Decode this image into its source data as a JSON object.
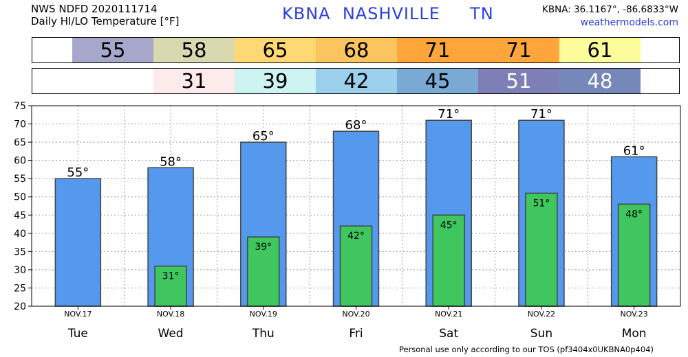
{
  "header": {
    "line1": "NWS NDFD 2020111714",
    "line2": "Daily HI/LO Temperature [°F]",
    "station": "KBNA  NASHVILLE     TN",
    "coords": "KBNA: 36.1167°, -86.6833°W",
    "site": "weathermodels.com"
  },
  "strips": {
    "hi": [
      {
        "value": "55",
        "color": "#a7a7cb",
        "text_color": "#000000"
      },
      {
        "value": "58",
        "color": "#d9d9b0",
        "text_color": "#000000"
      },
      {
        "value": "65",
        "color": "#fed873",
        "text_color": "#000000"
      },
      {
        "value": "68",
        "color": "#fbc45e",
        "text_color": "#000000"
      },
      {
        "value": "71",
        "color": "#fea53b",
        "text_color": "#000000"
      },
      {
        "value": "71",
        "color": "#fea53b",
        "text_color": "#000000"
      },
      {
        "value": "61",
        "color": "#fcfc9d",
        "text_color": "#000000"
      }
    ],
    "lo": [
      {
        "value": "",
        "color": "#ffffff",
        "text_color": "#000000"
      },
      {
        "value": "31",
        "color": "#fdeaea",
        "text_color": "#000000"
      },
      {
        "value": "39",
        "color": "#cdf3f3",
        "text_color": "#000000"
      },
      {
        "value": "42",
        "color": "#9ccfec",
        "text_color": "#000000"
      },
      {
        "value": "45",
        "color": "#7aa9d4",
        "text_color": "#000000"
      },
      {
        "value": "51",
        "color": "#7d7fb6",
        "text_color": "#ffffff"
      },
      {
        "value": "48",
        "color": "#7588b9",
        "text_color": "#ffffff"
      }
    ]
  },
  "chart_data": {
    "type": "bar",
    "categories": [
      "Tue",
      "Wed",
      "Thu",
      "Fri",
      "Sat",
      "Sun",
      "Mon"
    ],
    "dates": [
      "NOV.17",
      "NOV.18",
      "NOV.19",
      "NOV.20",
      "NOV.21",
      "NOV.22",
      "NOV.23"
    ],
    "series": [
      {
        "values": [
          55,
          58,
          65,
          68,
          71,
          71,
          61
        ],
        "labels": [
          "55°",
          "58°",
          "65°",
          "68°",
          "71°",
          "71°",
          "61°"
        ],
        "color": "#5599ee"
      },
      {
        "values": [
          null,
          31,
          39,
          42,
          45,
          51,
          48
        ],
        "labels": [
          "",
          "31°",
          "39°",
          "42°",
          "45°",
          "51°",
          "48°"
        ],
        "color": "#3fc65e"
      }
    ],
    "ylim": [
      20,
      75
    ],
    "yticks": [
      20,
      25,
      30,
      35,
      40,
      45,
      50,
      55,
      60,
      65,
      70,
      75
    ],
    "grid": true
  },
  "footer": {
    "tos": "Personal use only according to our TOS (pf3404x0UKBNA0p404)"
  }
}
